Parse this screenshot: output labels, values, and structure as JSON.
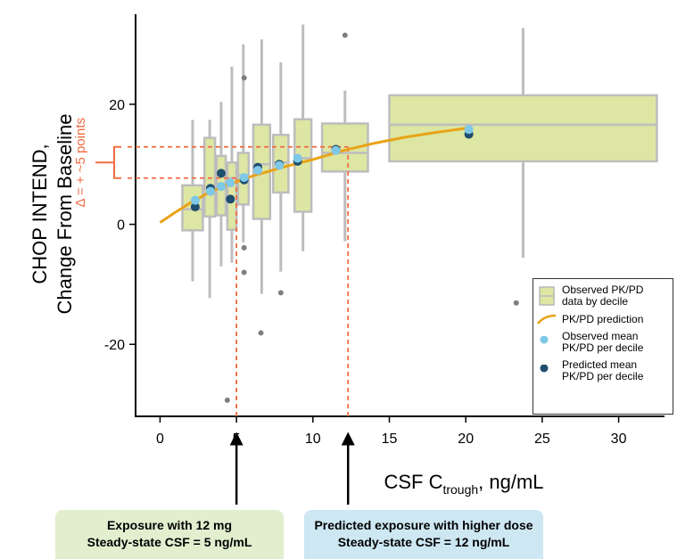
{
  "chart_data": {
    "type": "box",
    "y_label": [
      "CHOP INTEND,",
      "Change From Baseline"
    ],
    "x_label": {
      "main": "CSF C",
      "sub": "trough",
      "rest": ", ng/mL"
    },
    "xlim": [
      -1.6,
      33
    ],
    "xticks": [
      0,
      5,
      10,
      15,
      20,
      25,
      30
    ],
    "ylim": [
      -32,
      35
    ],
    "yticks": [
      -20,
      0,
      20
    ],
    "boxes": {
      "name": "Observed PK/PD data by decile",
      "color": "#dde6a3",
      "stroke": "#bdbdbd",
      "x_left": [
        1.46,
        2.9,
        3.7,
        4.4,
        5.1,
        6.1,
        7.4,
        8.8,
        10.6,
        15.0
      ],
      "x_right": [
        2.8,
        3.6,
        4.3,
        5.0,
        5.8,
        7.2,
        8.4,
        9.9,
        13.6,
        32.5
      ],
      "q1": [
        -1,
        1.3,
        1.5,
        -0.9,
        3.3,
        0.9,
        5.3,
        2.1,
        8.8,
        10.5
      ],
      "median": [
        2.5,
        6.2,
        6.8,
        7.7,
        8.2,
        10,
        10.3,
        11,
        11.9,
        16.6
      ],
      "q3": [
        6.5,
        14.4,
        11.4,
        10.3,
        11.9,
        16.6,
        14.9,
        17.5,
        16.8,
        21.5
      ],
      "whisker_low": [
        -9.5,
        -12.3,
        -7,
        -6.4,
        -3,
        -11.6,
        -7.9,
        -4.5,
        -2.8,
        -5.6
      ],
      "whisker_high": [
        17.4,
        17.4,
        20.4,
        26.3,
        30,
        30.8,
        27,
        33.3,
        22.3,
        32.7
      ]
    },
    "outliers": {
      "color": "#7f7f7f",
      "x": [
        4.4,
        5.5,
        5.5,
        5.5,
        6.6,
        7.9,
        12.1,
        23.3
      ],
      "y": [
        -29.3,
        24.4,
        -3.9,
        -8,
        -18.1,
        -11.4,
        31.5,
        -13.1
      ]
    },
    "curve": {
      "name": "PK/PD prediction",
      "color": "#e8a317",
      "x": [
        0,
        1,
        2,
        3,
        4,
        5,
        6,
        8,
        10,
        12,
        14,
        16,
        18,
        20
      ],
      "y": [
        0.3,
        2,
        3.6,
        5,
        6.2,
        7.1,
        8,
        9.5,
        10.8,
        12.3,
        13.5,
        14.5,
        15.3,
        16
      ]
    },
    "observed_mean": {
      "name": "Observed mean PK/PD per decile",
      "color": "#7ec8e8",
      "x": [
        2.3,
        3.3,
        4.0,
        4.6,
        5.5,
        6.4,
        7.8,
        9.0,
        11.5,
        20.2
      ],
      "y": [
        4,
        5.5,
        6.3,
        6.9,
        7.8,
        9,
        9.8,
        11,
        12.3,
        15.8
      ]
    },
    "predicted_mean": {
      "name": "Predicted mean PK/PD per decile",
      "color": "#1f4e6e",
      "x": [
        2.3,
        3.3,
        4.0,
        4.6,
        5.5,
        6.4,
        7.8,
        9.0,
        11.5,
        20.2
      ],
      "y": [
        2.9,
        6,
        8.5,
        4.2,
        7.4,
        9.5,
        10,
        10.5,
        12.5,
        15
      ]
    },
    "reference": {
      "color": "#f26b43",
      "x": [
        5,
        12.3
      ],
      "y": [
        7.7,
        12.9
      ]
    },
    "delta_label": "Δ = + ~5 points",
    "callouts": [
      {
        "lines": [
          "Exposure with 12 mg",
          "Steady-state CSF = 5 ng/mL"
        ]
      },
      {
        "lines": [
          "Predicted exposure with higher dose",
          "Steady-state CSF = 12 ng/mL"
        ]
      }
    ]
  }
}
